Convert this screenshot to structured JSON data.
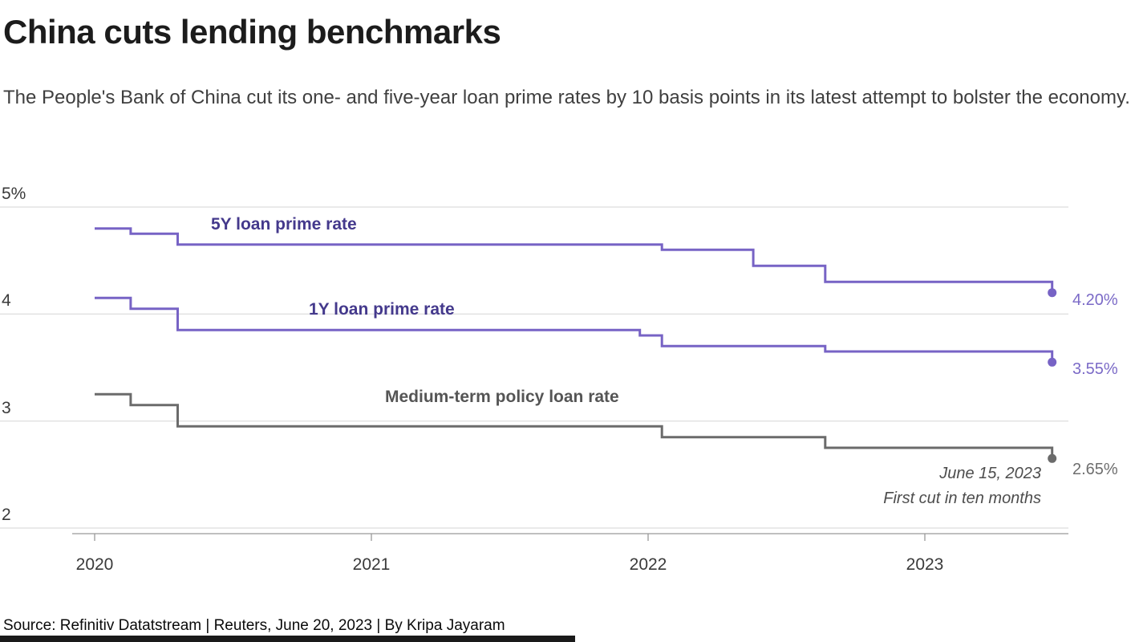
{
  "header": {
    "title": "China cuts lending benchmarks",
    "subtitle": "The People's Bank of China cut its one- and five-year loan prime rates by 10 basis points in its latest attempt to bolster the economy."
  },
  "footer": {
    "source": "Source: Refinitiv Datatstream | Reuters, June 20, 2023 | By Kripa Jayaram"
  },
  "chart_data": {
    "type": "line",
    "subtype": "step",
    "title": "China cuts lending benchmarks",
    "xlabel": "",
    "ylabel": "",
    "x_unit": "decimal_year",
    "y_unit": "percent",
    "xlim_years": [
      2019.66,
      2023.52
    ],
    "ylim": [
      2,
      5
    ],
    "grid": "horizontal",
    "legend": "inline-labels",
    "grid_color": "#d6d6d6",
    "axis_color": "#999999",
    "y_ticks": [
      {
        "label": "5%",
        "value": 5
      },
      {
        "label": "4",
        "value": 4
      },
      {
        "label": "3",
        "value": 3
      },
      {
        "label": "2",
        "value": 2
      }
    ],
    "x_ticks": [
      {
        "label": "2020",
        "value": 2020
      },
      {
        "label": "2021",
        "value": 2021
      },
      {
        "label": "2022",
        "value": 2022
      },
      {
        "label": "2023",
        "value": 2023
      }
    ],
    "series": [
      {
        "id": "5y-loan-prime-rate",
        "name": "5Y loan prime rate",
        "color": "#7763c5",
        "end_label": "4.20%",
        "end_label_color": "#7b6ac7",
        "points": [
          [
            2020.0,
            4.8
          ],
          [
            2020.13,
            4.75
          ],
          [
            2020.3,
            4.65
          ],
          [
            2022.05,
            4.6
          ],
          [
            2022.38,
            4.45
          ],
          [
            2022.64,
            4.3
          ],
          [
            2023.46,
            4.2
          ]
        ]
      },
      {
        "id": "1y-loan-prime-rate",
        "name": "1Y loan prime rate",
        "color": "#7763c5",
        "end_label": "3.55%",
        "end_label_color": "#7b6ac7",
        "points": [
          [
            2020.0,
            4.15
          ],
          [
            2020.13,
            4.05
          ],
          [
            2020.3,
            3.85
          ],
          [
            2021.97,
            3.8
          ],
          [
            2022.05,
            3.7
          ],
          [
            2022.64,
            3.65
          ],
          [
            2023.46,
            3.55
          ]
        ]
      },
      {
        "id": "medium-term-policy-loan-rate",
        "name": "Medium-term policy loan rate",
        "color": "#6b6b6b",
        "end_label": "2.65%",
        "end_label_color": "#6e6e6e",
        "points": [
          [
            2020.0,
            3.25
          ],
          [
            2020.13,
            3.15
          ],
          [
            2020.3,
            2.95
          ],
          [
            2022.05,
            2.85
          ],
          [
            2022.64,
            2.75
          ],
          [
            2023.46,
            2.65
          ]
        ]
      }
    ],
    "annotation": {
      "line1": "June 15, 2023",
      "line2": "First cut in ten months"
    }
  }
}
